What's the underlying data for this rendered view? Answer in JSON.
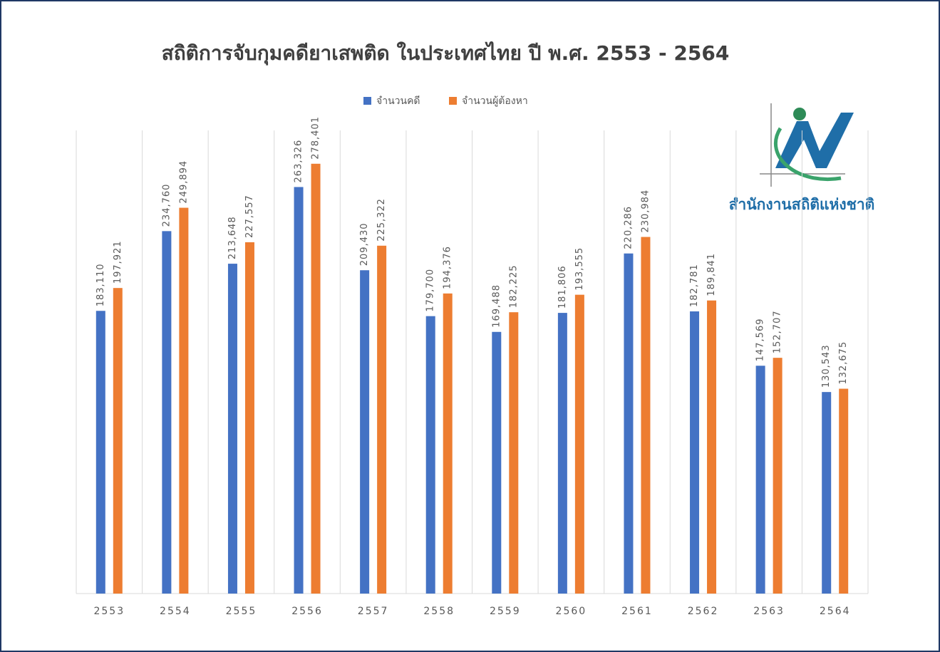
{
  "chart_data": {
    "type": "bar",
    "title": "สถิติการจับกุมคดียาเสพติด ในประเทศไทย ปี พ.ศ. 2553 - 2564",
    "logo_text": "สำนักงานสถิติแห่งชาติ",
    "categories": [
      "2553",
      "2554",
      "2555",
      "2556",
      "2557",
      "2558",
      "2559",
      "2560",
      "2561",
      "2562",
      "2563",
      "2564"
    ],
    "series": [
      {
        "name": "จำนวนคดี",
        "color": "#4472c4",
        "values": [
          183110,
          234760,
          213648,
          263326,
          209430,
          179700,
          169488,
          181806,
          220286,
          182781,
          147569,
          130543
        ],
        "value_labels": [
          "183,110",
          "234,760",
          "213,648",
          "263,326",
          "209,430",
          "179,700",
          "169,488",
          "181,806",
          "220,286",
          "182,781",
          "147,569",
          "130,543"
        ]
      },
      {
        "name": "จำนวนผู้ต้องหา",
        "color": "#ed7d31",
        "values": [
          197921,
          249894,
          227557,
          278401,
          225322,
          194376,
          182225,
          193555,
          230984,
          189841,
          152707,
          132675
        ],
        "value_labels": [
          "197,921",
          "249,894",
          "227,557",
          "278,401",
          "225,322",
          "194,376",
          "182,225",
          "193,555",
          "230,984",
          "189,841",
          "152,707",
          "132,675"
        ]
      }
    ],
    "ylim": [
      0,
      300000
    ],
    "legend": "top"
  }
}
